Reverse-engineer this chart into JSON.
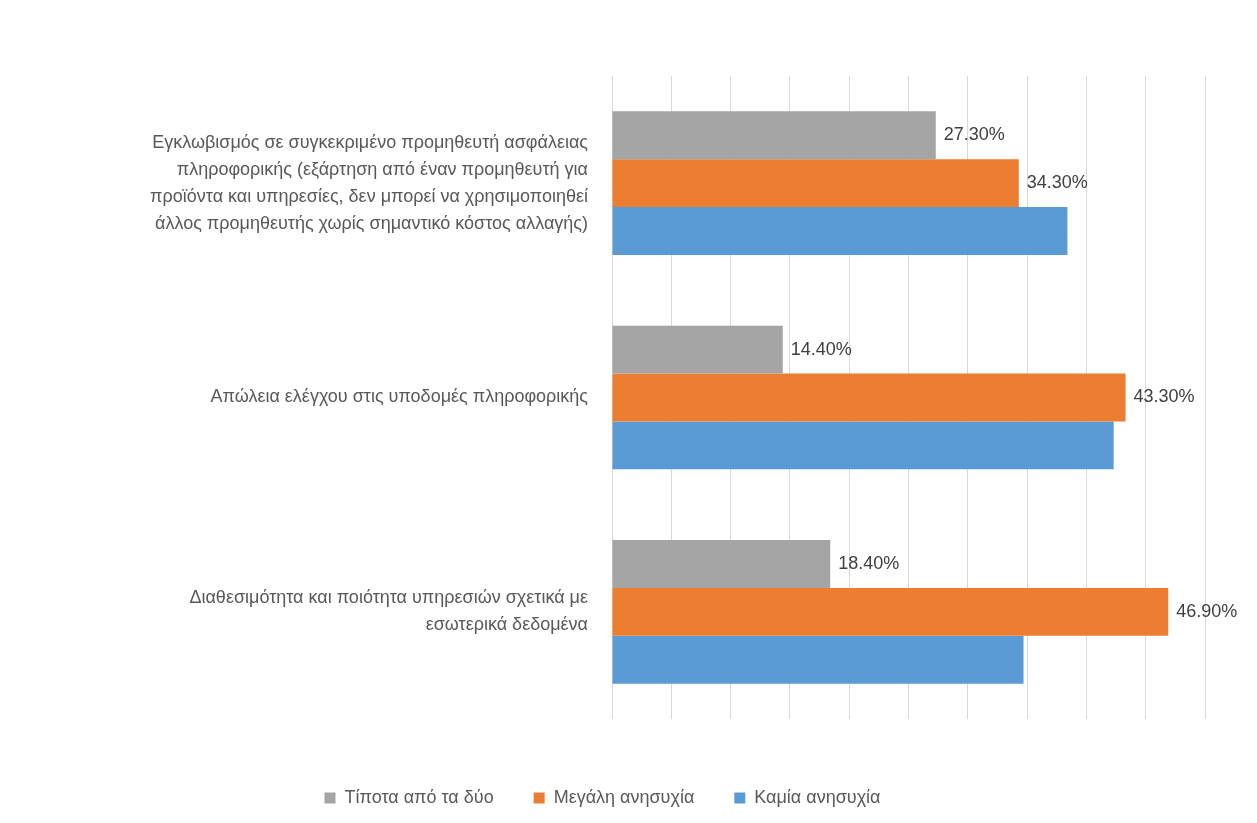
{
  "chart_data": {
    "type": "bar",
    "orientation": "horizontal",
    "categories": [
      "Εγκλωβισμός σε συγκεκριμένο προμηθευτή ασφάλειας πληροφορικής (εξάρτηση από έναν προμηθευτή για προϊόντα και υπηρεσίες, δεν μπορεί να χρησιμοποιηθεί άλλος προμηθευτής χωρίς σημαντικό κόστος αλλαγής)",
      "Απώλεια ελέγχου στις υποδομές πληροφορικής",
      "Διαθεσιμότητα και ποιότητα υπηρεσιών σχετικά με εσωτερικά δεδομένα"
    ],
    "series": [
      {
        "name": "Τίποτα από τα δύο",
        "color": "#a5a5a5",
        "values": [
          27.3,
          14.4,
          18.4
        ],
        "value_labels": [
          "27.30%",
          "14.40%",
          "18.40%"
        ]
      },
      {
        "name": "Μεγάλη ανησυχία",
        "color": "#ed7d31",
        "values": [
          34.3,
          43.3,
          46.9
        ],
        "value_labels": [
          "34.30%",
          "43.30%",
          "46.90%"
        ]
      },
      {
        "name": "Καμία ανησυχία",
        "color": "#5b9bd5",
        "values": [
          38.4,
          42.3,
          34.7
        ]
      }
    ],
    "xlim": [
      0,
      50
    ],
    "xticks": [
      {
        "value": 0,
        "label": null
      },
      {
        "value": 5,
        "label": null
      },
      {
        "value": 10,
        "label": null
      },
      {
        "value": 15,
        "label": null
      },
      {
        "value": 20,
        "label": null
      },
      {
        "value": 25,
        "label": null
      },
      {
        "value": 30,
        "label": null
      },
      {
        "value": 35,
        "label": null
      },
      {
        "value": 40,
        "label": null
      },
      {
        "value": 45,
        "label": null
      },
      {
        "value": 50,
        "label": null
      }
    ],
    "grid": "x",
    "legend": "bottom",
    "tick_labels": "y"
  }
}
